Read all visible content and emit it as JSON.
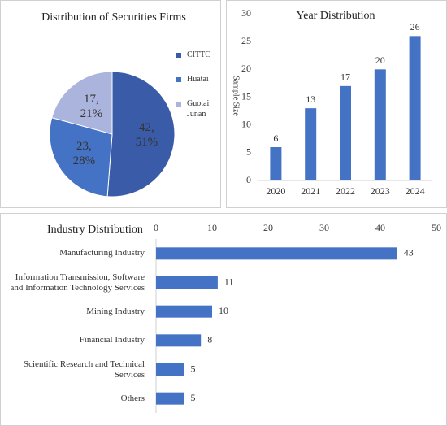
{
  "chart_data": [
    {
      "type": "pie",
      "title": "Distribution of Securities Firms",
      "categories": [
        "CITTC",
        "Huatai",
        "Guotai Junan"
      ],
      "values": [
        42,
        23,
        17
      ],
      "value_labels": [
        [
          "42,",
          "51%"
        ],
        [
          "23,",
          "28%"
        ],
        [
          "17,",
          "21%"
        ]
      ],
      "colors": [
        "#3a5ba8",
        "#4472c4",
        "#aab4dc"
      ],
      "legend": "right"
    },
    {
      "type": "bar",
      "title": "Year Distribution",
      "y_label": "Sample Size",
      "categories": [
        "2020",
        "2021",
        "2022",
        "2023",
        "2024"
      ],
      "values": [
        6,
        13,
        17,
        20,
        26
      ],
      "color": "#4472c4",
      "ylim": [
        0,
        30
      ],
      "yticks": [
        0,
        5,
        10,
        15,
        20,
        25,
        30
      ]
    },
    {
      "type": "hbar",
      "title": "Industry Distribution",
      "categories": [
        "Manufacturing Industry",
        "Information Transmission, Software and Information Technology Services",
        "Mining Industry",
        "Financial Industry",
        "Scientific Research and Technical Services",
        "Others"
      ],
      "values": [
        43,
        11,
        10,
        8,
        5,
        5
      ],
      "color": "#4472c4",
      "xlim": [
        0,
        50
      ],
      "xticks": [
        0,
        10,
        20,
        30,
        40,
        50
      ]
    }
  ]
}
